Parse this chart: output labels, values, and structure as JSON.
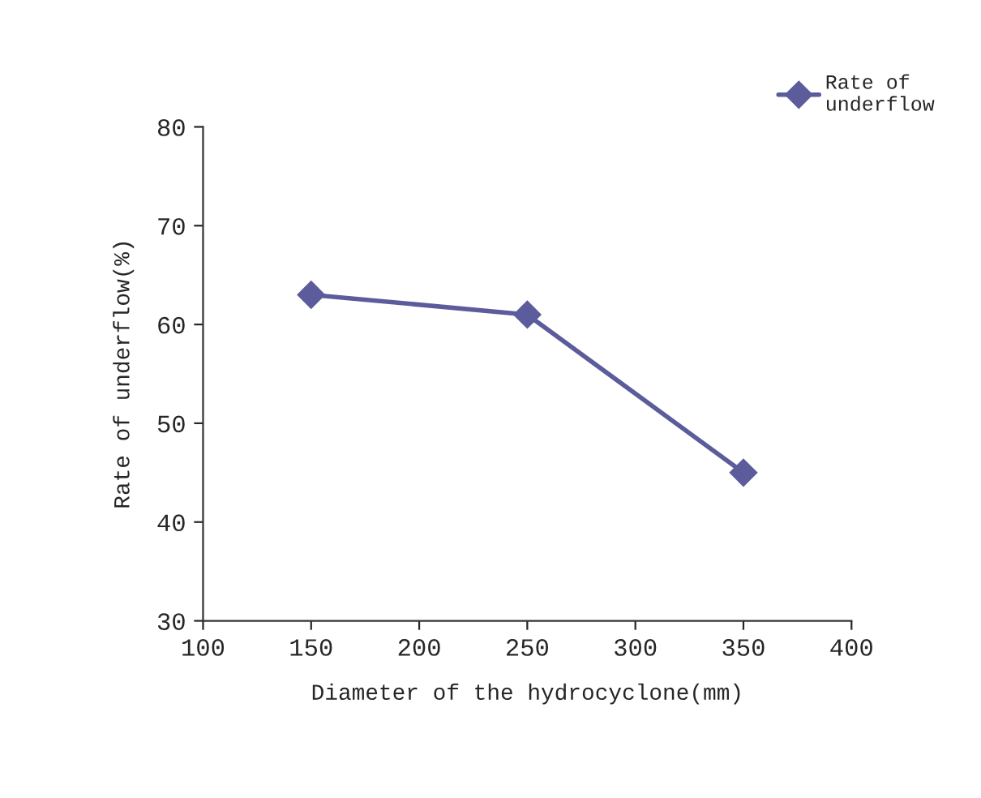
{
  "chart_data": {
    "type": "line",
    "xlabel": "Diameter of the hydrocyclone(mm)",
    "ylabel": "Rate of underflow(%)",
    "x": [
      150,
      250,
      350
    ],
    "series": [
      {
        "name": "Rate of\nunderflow",
        "color": "#5c5c9c",
        "values": [
          63,
          61,
          45
        ]
      }
    ],
    "xlim": [
      100,
      400
    ],
    "xticks": [
      100,
      150,
      200,
      250,
      300,
      350,
      400
    ],
    "ylim": [
      30,
      80
    ],
    "yticks": [
      30,
      40,
      50,
      60,
      70,
      80
    ],
    "grid": false,
    "legend": "top right",
    "marker": "diamond",
    "line_style": "solid"
  }
}
